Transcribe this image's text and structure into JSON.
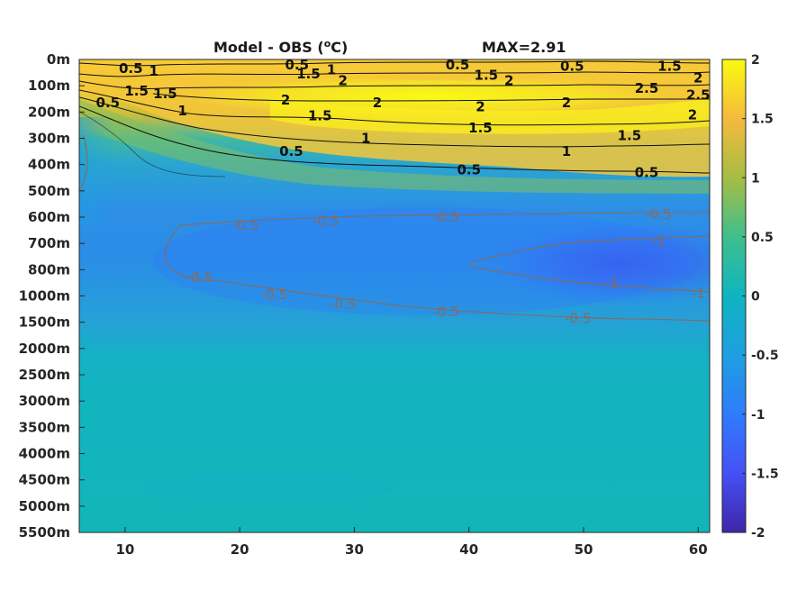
{
  "chart_data": {
    "type": "heatmap",
    "title": "Model - OBS (",
    "title_unit_sup": "o",
    "title_unit_end": "C)",
    "max_label": "MAX=2.91",
    "xlim": [
      6,
      61
    ],
    "x_ticks": [
      10,
      20,
      30,
      40,
      50,
      60
    ],
    "y_ticks": [
      "0m",
      "100m",
      "200m",
      "300m",
      "400m",
      "500m",
      "600m",
      "700m",
      "800m",
      "1000m",
      "1500m",
      "2000m",
      "2500m",
      "3000m",
      "3500m",
      "4000m",
      "4500m",
      "5000m",
      "5500m"
    ],
    "colorbar": {
      "range": [
        -2,
        2
      ],
      "ticks": [
        "2",
        "1.5",
        "1",
        "0.5",
        "0",
        "-0.5",
        "-1",
        "-1.5",
        "-2"
      ],
      "colormap": "parula"
    },
    "contour_labels": {
      "positive": [
        {
          "text": "0.5",
          "x": 10.5,
          "depth_index": 0.35
        },
        {
          "text": "1",
          "x": 12.5,
          "depth_index": 0.45
        },
        {
          "text": "1.5",
          "x": 11,
          "depth_index": 1.2
        },
        {
          "text": "1.5",
          "x": 13.5,
          "depth_index": 1.3
        },
        {
          "text": "0.5",
          "x": 8.5,
          "depth_index": 1.65
        },
        {
          "text": "1",
          "x": 15,
          "depth_index": 1.95
        },
        {
          "text": "0.5",
          "x": 25,
          "depth_index": 0.2
        },
        {
          "text": "1.5",
          "x": 26,
          "depth_index": 0.55
        },
        {
          "text": "1",
          "x": 28,
          "depth_index": 0.4
        },
        {
          "text": "2",
          "x": 29,
          "depth_index": 0.8
        },
        {
          "text": "2",
          "x": 24,
          "depth_index": 1.55
        },
        {
          "text": "1.5",
          "x": 27,
          "depth_index": 2.15
        },
        {
          "text": "2",
          "x": 32,
          "depth_index": 1.65
        },
        {
          "text": "1",
          "x": 31,
          "depth_index": 3.0
        },
        {
          "text": "0.5",
          "x": 24.5,
          "depth_index": 3.5
        },
        {
          "text": "0.5",
          "x": 39,
          "depth_index": 0.2
        },
        {
          "text": "1.5",
          "x": 41.5,
          "depth_index": 0.6
        },
        {
          "text": "2",
          "x": 43.5,
          "depth_index": 0.8
        },
        {
          "text": "2",
          "x": 41,
          "depth_index": 1.8
        },
        {
          "text": "1.5",
          "x": 41,
          "depth_index": 2.6
        },
        {
          "text": "0.5",
          "x": 40,
          "depth_index": 4.2
        },
        {
          "text": "0.5",
          "x": 49,
          "depth_index": 0.25
        },
        {
          "text": "2",
          "x": 48.5,
          "depth_index": 1.65
        },
        {
          "text": "1",
          "x": 48.5,
          "depth_index": 3.5
        },
        {
          "text": "1.5",
          "x": 54,
          "depth_index": 2.9
        },
        {
          "text": "0.5",
          "x": 55.5,
          "depth_index": 4.3
        },
        {
          "text": "1.5",
          "x": 57.5,
          "depth_index": 0.25
        },
        {
          "text": "2.5",
          "x": 55.5,
          "depth_index": 1.1
        },
        {
          "text": "2",
          "x": 60,
          "depth_index": 0.7
        },
        {
          "text": "2.5",
          "x": 60,
          "depth_index": 1.35
        },
        {
          "text": "2",
          "x": 59.5,
          "depth_index": 2.1
        }
      ],
      "negative": [
        {
          "text": "-0.5",
          "x": 20.5,
          "depth_index": 6.3
        },
        {
          "text": "-0.5",
          "x": 27.5,
          "depth_index": 6.15
        },
        {
          "text": "-0.5",
          "x": 38,
          "depth_index": 6.0
        },
        {
          "text": "-0.5",
          "x": 56.5,
          "depth_index": 5.9
        },
        {
          "text": "-1",
          "x": 56.5,
          "depth_index": 6.9
        },
        {
          "text": "-0.5",
          "x": 16.5,
          "depth_index": 8.3
        },
        {
          "text": "-0.5",
          "x": 23,
          "depth_index": 8.95
        },
        {
          "text": "-0.5",
          "x": 29,
          "depth_index": 9.3
        },
        {
          "text": "-0.5",
          "x": 38,
          "depth_index": 9.6
        },
        {
          "text": "-0.5",
          "x": 49.5,
          "depth_index": 9.85
        },
        {
          "text": "-1",
          "x": 52.5,
          "depth_index": 8.5
        },
        {
          "text": "-1",
          "x": 60,
          "depth_index": 8.9
        }
      ]
    },
    "field_summary": [
      {
        "depth_range": "0m-100m",
        "description": "warm bias band, max 2.91",
        "value_range": [
          0.5,
          2.9
        ]
      },
      {
        "depth_range": "100m-300m",
        "value_range": [
          1.0,
          2.5
        ]
      },
      {
        "depth_range": "600m-1000m",
        "value_range": [
          -1.2,
          -0.4
        ]
      },
      {
        "depth_range": "2000m-5500m",
        "value_range": [
          -0.3,
          0.0
        ]
      }
    ]
  }
}
